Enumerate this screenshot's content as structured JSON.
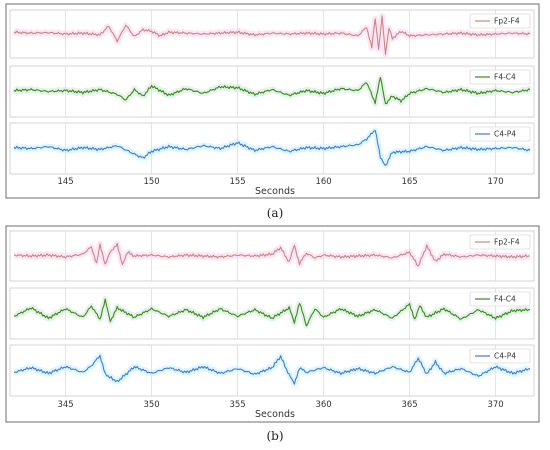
{
  "chart_data": [
    {
      "type": "line",
      "panel_label": "(a)",
      "xlabel": "Seconds",
      "xlim": [
        142,
        172
      ],
      "xticks": [
        145,
        150,
        155,
        160,
        165,
        170
      ],
      "grid": true,
      "legend_position": "top-right",
      "series": [
        {
          "name": "Fp2-F4",
          "color": "#c08a8a",
          "glow": "#ffd0ea",
          "x": [
            142,
            143,
            144,
            145,
            146,
            147,
            147.5,
            148,
            148.5,
            149,
            149.5,
            150,
            150.5,
            151,
            152,
            153,
            154,
            155,
            156,
            157,
            158,
            159,
            160,
            161,
            162,
            162.5,
            162.8,
            163,
            163.2,
            163.4,
            163.6,
            163.8,
            164,
            164.5,
            165,
            166,
            167,
            168,
            169,
            170,
            171,
            172
          ],
          "y": [
            0.2,
            0.1,
            0.15,
            0.0,
            0.1,
            -0.1,
            0.9,
            -0.8,
            1.0,
            -0.3,
            0.5,
            0.3,
            -0.2,
            0.2,
            0.1,
            0.0,
            0.1,
            0.2,
            -0.1,
            0.1,
            0.0,
            0.1,
            0.0,
            0.1,
            -0.2,
            0.8,
            -1.5,
            1.8,
            -1.7,
            2.0,
            -2.3,
            0.7,
            -0.5,
            0.3,
            -0.2,
            -0.1,
            0.0,
            0.1,
            -0.1,
            0.0,
            0.1,
            0.0
          ]
        },
        {
          "name": "F4-C4",
          "color": "#3c8a1e",
          "glow": "#cfe7d5",
          "x": [
            142,
            143,
            144,
            145,
            146,
            147,
            148,
            148.5,
            149,
            149.5,
            150,
            151,
            152,
            153,
            154,
            155,
            156,
            157,
            158,
            159,
            160,
            161,
            162,
            162.5,
            163,
            163.3,
            163.6,
            164,
            164.5,
            165,
            166,
            167,
            168,
            169,
            170,
            171,
            172
          ],
          "y": [
            0.1,
            0.2,
            0.0,
            0.1,
            -0.1,
            0.2,
            -0.3,
            -0.9,
            0.2,
            -0.5,
            0.6,
            -0.4,
            0.3,
            -0.2,
            0.5,
            0.4,
            -0.3,
            0.2,
            -0.4,
            0.1,
            -0.2,
            0.3,
            0.1,
            1.0,
            -1.2,
            1.5,
            -1.3,
            -0.5,
            -1.0,
            -0.2,
            0.3,
            -0.1,
            0.2,
            -0.2,
            0.1,
            -0.1,
            0.2
          ]
        },
        {
          "name": "C4-P4",
          "color": "#4a76d4",
          "glow": "#bff3ff",
          "x": [
            142,
            143,
            144,
            145,
            146,
            147,
            148,
            149,
            149.5,
            150,
            151,
            152,
            153,
            154,
            155,
            156,
            157,
            158,
            159,
            160,
            161,
            162,
            162.5,
            163,
            163.3,
            163.6,
            164,
            165,
            166,
            167,
            168,
            169,
            170,
            171,
            172
          ],
          "y": [
            0.1,
            0.0,
            0.2,
            -0.2,
            0.1,
            -0.1,
            0.3,
            -0.6,
            -1.0,
            -0.3,
            0.2,
            -0.1,
            0.3,
            0.0,
            0.6,
            -0.2,
            0.2,
            -0.3,
            0.1,
            0.0,
            0.2,
            0.4,
            1.0,
            2.0,
            -1.0,
            -1.8,
            -0.4,
            -0.3,
            0.2,
            -0.2,
            0.1,
            -0.1,
            0.0,
            0.1,
            -0.2
          ]
        }
      ]
    },
    {
      "type": "line",
      "panel_label": "(b)",
      "xlabel": "Seconds",
      "xlim": [
        342,
        372
      ],
      "xticks": [
        345,
        350,
        355,
        360,
        365,
        370
      ],
      "grid": true,
      "legend_position": "top-right",
      "series": [
        {
          "name": "Fp2-F4",
          "color": "#c08a8a",
          "glow": "#ffd0ea",
          "x": [
            342,
            343,
            344,
            345,
            346,
            346.5,
            346.8,
            347,
            347.3,
            347.6,
            348,
            348.3,
            348.6,
            349,
            350,
            351,
            352,
            353,
            354,
            355,
            356,
            357,
            357.5,
            358,
            358.3,
            358.6,
            359,
            359.5,
            360,
            361,
            362,
            363,
            364,
            365,
            365.5,
            366,
            366.5,
            367,
            368,
            369,
            370,
            371,
            372
          ],
          "y": [
            0.1,
            0.0,
            0.1,
            -0.1,
            0.2,
            1.0,
            -0.8,
            1.3,
            -1.0,
            0.5,
            1.2,
            -0.9,
            0.4,
            0.0,
            0.1,
            -0.1,
            0.1,
            0.0,
            -0.1,
            0.1,
            0.0,
            0.2,
            0.9,
            -0.7,
            1.2,
            -0.8,
            0.3,
            -0.2,
            0.1,
            -0.1,
            0.0,
            0.1,
            -0.2,
            0.4,
            -1.1,
            1.1,
            -0.6,
            0.2,
            -0.1,
            0.1,
            0.0,
            -0.1,
            0.0
          ]
        },
        {
          "name": "F4-C4",
          "color": "#3c8a1e",
          "glow": "#cfe7d5",
          "x": [
            342,
            343,
            344,
            345,
            346,
            346.5,
            347,
            347.3,
            347.6,
            348,
            349,
            350,
            351,
            352,
            353,
            354,
            355,
            356,
            357,
            358,
            358.3,
            358.6,
            359,
            359.5,
            360,
            361,
            362,
            363,
            364,
            365,
            365.3,
            365.6,
            366,
            367,
            368,
            369,
            370,
            371,
            372
          ],
          "y": [
            -0.3,
            0.6,
            -0.5,
            0.5,
            -0.4,
            0.8,
            -0.6,
            1.4,
            -0.8,
            0.6,
            -0.4,
            0.5,
            -0.3,
            0.4,
            -0.4,
            0.5,
            -0.3,
            0.4,
            -0.5,
            0.6,
            -1.0,
            1.2,
            -1.3,
            0.5,
            -0.4,
            0.5,
            -0.3,
            0.4,
            -0.5,
            1.0,
            -0.6,
            0.8,
            -0.4,
            0.5,
            -0.6,
            0.4,
            -0.5,
            0.3,
            0.4
          ]
        },
        {
          "name": "C4-P4",
          "color": "#4a76d4",
          "glow": "#bff3ff",
          "x": [
            342,
            343,
            344,
            345,
            346,
            346.5,
            347,
            347.3,
            348,
            349,
            350,
            351,
            352,
            353,
            354,
            355,
            356,
            357,
            357.5,
            358,
            358.3,
            358.6,
            359,
            360,
            361,
            362,
            363,
            364,
            365,
            365.5,
            366,
            366.5,
            367,
            368,
            369,
            370,
            371,
            372
          ],
          "y": [
            -0.2,
            0.3,
            -0.3,
            0.4,
            -0.2,
            0.5,
            1.6,
            -0.4,
            -1.2,
            0.4,
            -0.3,
            0.3,
            -0.2,
            0.4,
            -0.3,
            0.2,
            -0.4,
            0.3,
            1.5,
            -0.5,
            -1.4,
            0.3,
            -0.2,
            0.3,
            -0.3,
            0.2,
            -0.3,
            0.4,
            -0.2,
            1.3,
            -0.4,
            0.9,
            -0.3,
            0.2,
            -0.6,
            0.4,
            -0.3,
            0.2
          ]
        }
      ]
    }
  ]
}
